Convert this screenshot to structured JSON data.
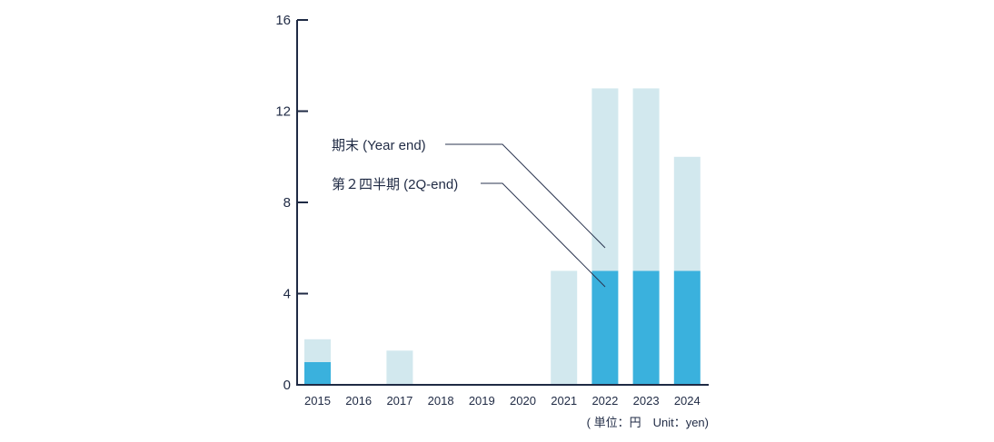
{
  "chart_data": {
    "type": "bar",
    "stacked": true,
    "categories": [
      "2015",
      "2016",
      "2017",
      "2018",
      "2019",
      "2020",
      "2021",
      "2022",
      "2023",
      "2024"
    ],
    "series": [
      {
        "name": "第２四半期 (2Q-end)",
        "values": [
          1,
          0,
          0,
          0,
          0,
          0,
          0,
          5,
          5,
          5
        ]
      },
      {
        "name": "期末 (Year end)",
        "values": [
          1,
          0,
          1.5,
          0,
          0,
          0,
          5,
          8,
          8,
          5
        ]
      }
    ],
    "ylim": [
      0,
      16
    ],
    "yticks": [
      0,
      4,
      8,
      12,
      16
    ],
    "ytick_labels": [
      "0",
      "4",
      "8",
      "12",
      "16"
    ],
    "unit_note": "( 単位：円　Unit：yen)",
    "grid": false,
    "legend": "callout labels left of the bars",
    "colors": {
      "2Q-end": "#3ab1dd",
      "Year end": "#d2e8ee",
      "axis": "#1f2a44",
      "leader": "#2b3550"
    }
  }
}
